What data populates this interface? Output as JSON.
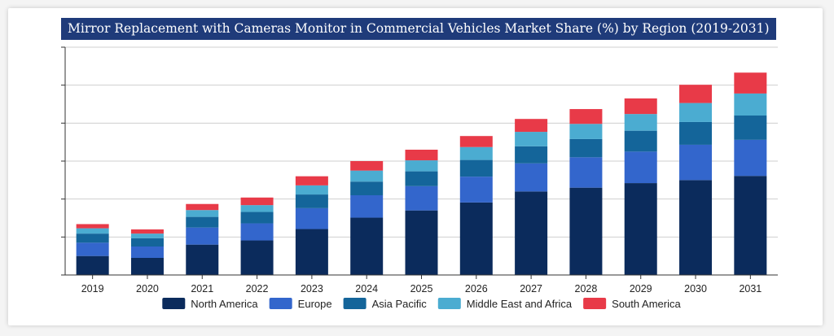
{
  "chart_data": {
    "type": "bar",
    "stacked": true,
    "title": "Mirror Replacement with Cameras Monitor in Commercial Vehicles Market Share (%) by Region (2019-2031)",
    "xlabel": "",
    "ylabel": "",
    "ylim": [
      0,
      6
    ],
    "y_tick_labels_shown": false,
    "grid": true,
    "legend_position": "bottom",
    "categories": [
      "2019",
      "2020",
      "2021",
      "2022",
      "2023",
      "2024",
      "2025",
      "2026",
      "2027",
      "2028",
      "2029",
      "2030",
      "2031"
    ],
    "series": [
      {
        "name": "North America",
        "color": "#0b2b5c",
        "values": [
          0.5,
          0.45,
          0.8,
          0.91,
          1.21,
          1.51,
          1.7,
          1.91,
          2.2,
          2.3,
          2.42,
          2.5,
          2.61
        ]
      },
      {
        "name": "Europe",
        "color": "#3366cc",
        "values": [
          0.35,
          0.3,
          0.45,
          0.45,
          0.55,
          0.59,
          0.64,
          0.68,
          0.74,
          0.8,
          0.83,
          0.93,
          0.95
        ]
      },
      {
        "name": "Asia Pacific",
        "color": "#14659a",
        "values": [
          0.24,
          0.22,
          0.28,
          0.3,
          0.36,
          0.36,
          0.39,
          0.44,
          0.45,
          0.48,
          0.55,
          0.6,
          0.64
        ]
      },
      {
        "name": "Middle East and Africa",
        "color": "#4bacd1",
        "values": [
          0.14,
          0.12,
          0.18,
          0.18,
          0.24,
          0.29,
          0.29,
          0.34,
          0.38,
          0.4,
          0.44,
          0.5,
          0.58
        ]
      },
      {
        "name": "South America",
        "color": "#e83a48",
        "values": [
          0.11,
          0.11,
          0.16,
          0.2,
          0.24,
          0.25,
          0.28,
          0.29,
          0.34,
          0.39,
          0.41,
          0.48,
          0.55
        ]
      }
    ]
  }
}
